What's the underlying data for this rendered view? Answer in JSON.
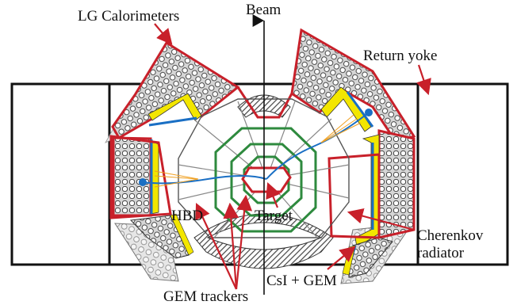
{
  "labels": {
    "lg_calorimeters": "LG Calorimeters",
    "beam": "Beam",
    "return_yoke": "Return yoke",
    "hbd": "HBD",
    "target": "Target",
    "cherenkov": "Cherenkov",
    "radiator": "radiator",
    "csi_gem": "CsI + GEM",
    "gem_trackers": "GEM trackers"
  },
  "colors": {
    "outline": "#111111",
    "detector_red": "#c8202a",
    "radiator_yellow": "#f3e600",
    "track_blue": "#1a6fc4",
    "hit_orange": "#f0a020",
    "gem_green": "#2e8a3e",
    "module_grey": "#dcdcdc",
    "hatch_grey": "#555555"
  }
}
